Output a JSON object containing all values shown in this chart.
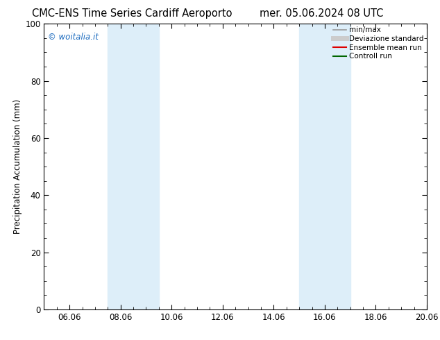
{
  "title_left": "CMC-ENS Time Series Cardiff Aeroporto",
  "title_right": "mer. 05.06.2024 08 UTC",
  "ylabel": "Precipitation Accumulation (mm)",
  "ylim": [
    0,
    100
  ],
  "yticks": [
    0,
    20,
    40,
    60,
    80,
    100
  ],
  "xlim": [
    0,
    15
  ],
  "xtick_labels": [
    "06.06",
    "08.06",
    "10.06",
    "12.06",
    "14.06",
    "16.06",
    "18.06",
    "20.06"
  ],
  "xtick_positions": [
    1,
    3,
    5,
    7,
    9,
    11,
    13,
    15
  ],
  "shaded_bands": [
    {
      "x_start": 2.5,
      "x_end": 4.5
    },
    {
      "x_start": 10.0,
      "x_end": 12.0
    }
  ],
  "shaded_color": "#ddeef9",
  "watermark_text": "© woitalia.it",
  "watermark_color": "#1a6abf",
  "legend_items": [
    {
      "label": "min/max",
      "color": "#999999",
      "lw": 1.2,
      "ls": "-"
    },
    {
      "label": "Deviazione standard",
      "color": "#cccccc",
      "lw": 5,
      "ls": "-"
    },
    {
      "label": "Ensemble mean run",
      "color": "#dd0000",
      "lw": 1.5,
      "ls": "-"
    },
    {
      "label": "Controll run",
      "color": "#006600",
      "lw": 1.5,
      "ls": "-"
    }
  ],
  "bg_color": "#ffffff",
  "title_fontsize": 10.5,
  "tick_fontsize": 8.5,
  "ylabel_fontsize": 8.5,
  "legend_fontsize": 7.5
}
